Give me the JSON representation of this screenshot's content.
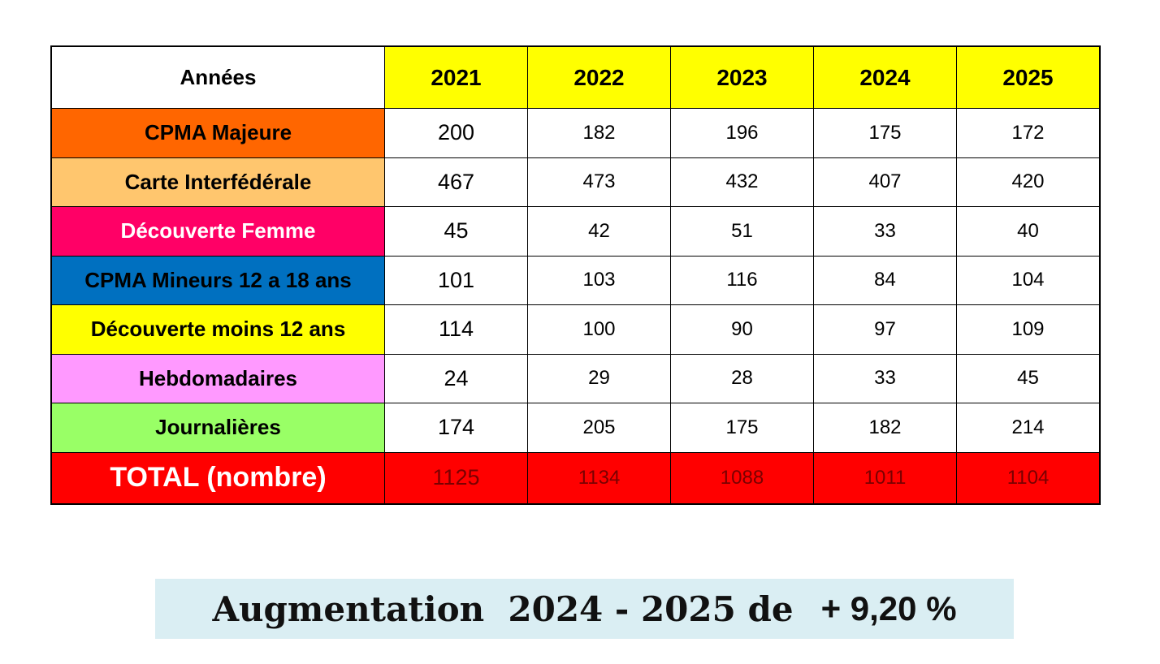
{
  "table": {
    "header": [
      "Années",
      "2021",
      "2022",
      "2023",
      "2024",
      "2025"
    ],
    "rows": [
      [
        "CPMA Majeure",
        200,
        182,
        196,
        175,
        172
      ],
      [
        "Carte Interfédérale",
        467,
        473,
        432,
        407,
        420
      ],
      [
        "Découverte Femme",
        45,
        42,
        51,
        33,
        40
      ],
      [
        "CPMA Mineurs 12 a 18 ans",
        101,
        103,
        116,
        84,
        104
      ],
      [
        "Découverte moins 12 ans",
        114,
        100,
        90,
        97,
        109
      ],
      [
        "Hebdomadaires",
        24,
        29,
        28,
        33,
        45
      ],
      [
        "Journalières",
        174,
        205,
        175,
        182,
        214
      ],
      [
        "TOTAL (nombre)",
        1125,
        1134,
        1088,
        1011,
        1104
      ]
    ]
  },
  "banner": {
    "label": "Augmentation  2024 - 2025 de",
    "value": "+ 9,20 %"
  }
}
